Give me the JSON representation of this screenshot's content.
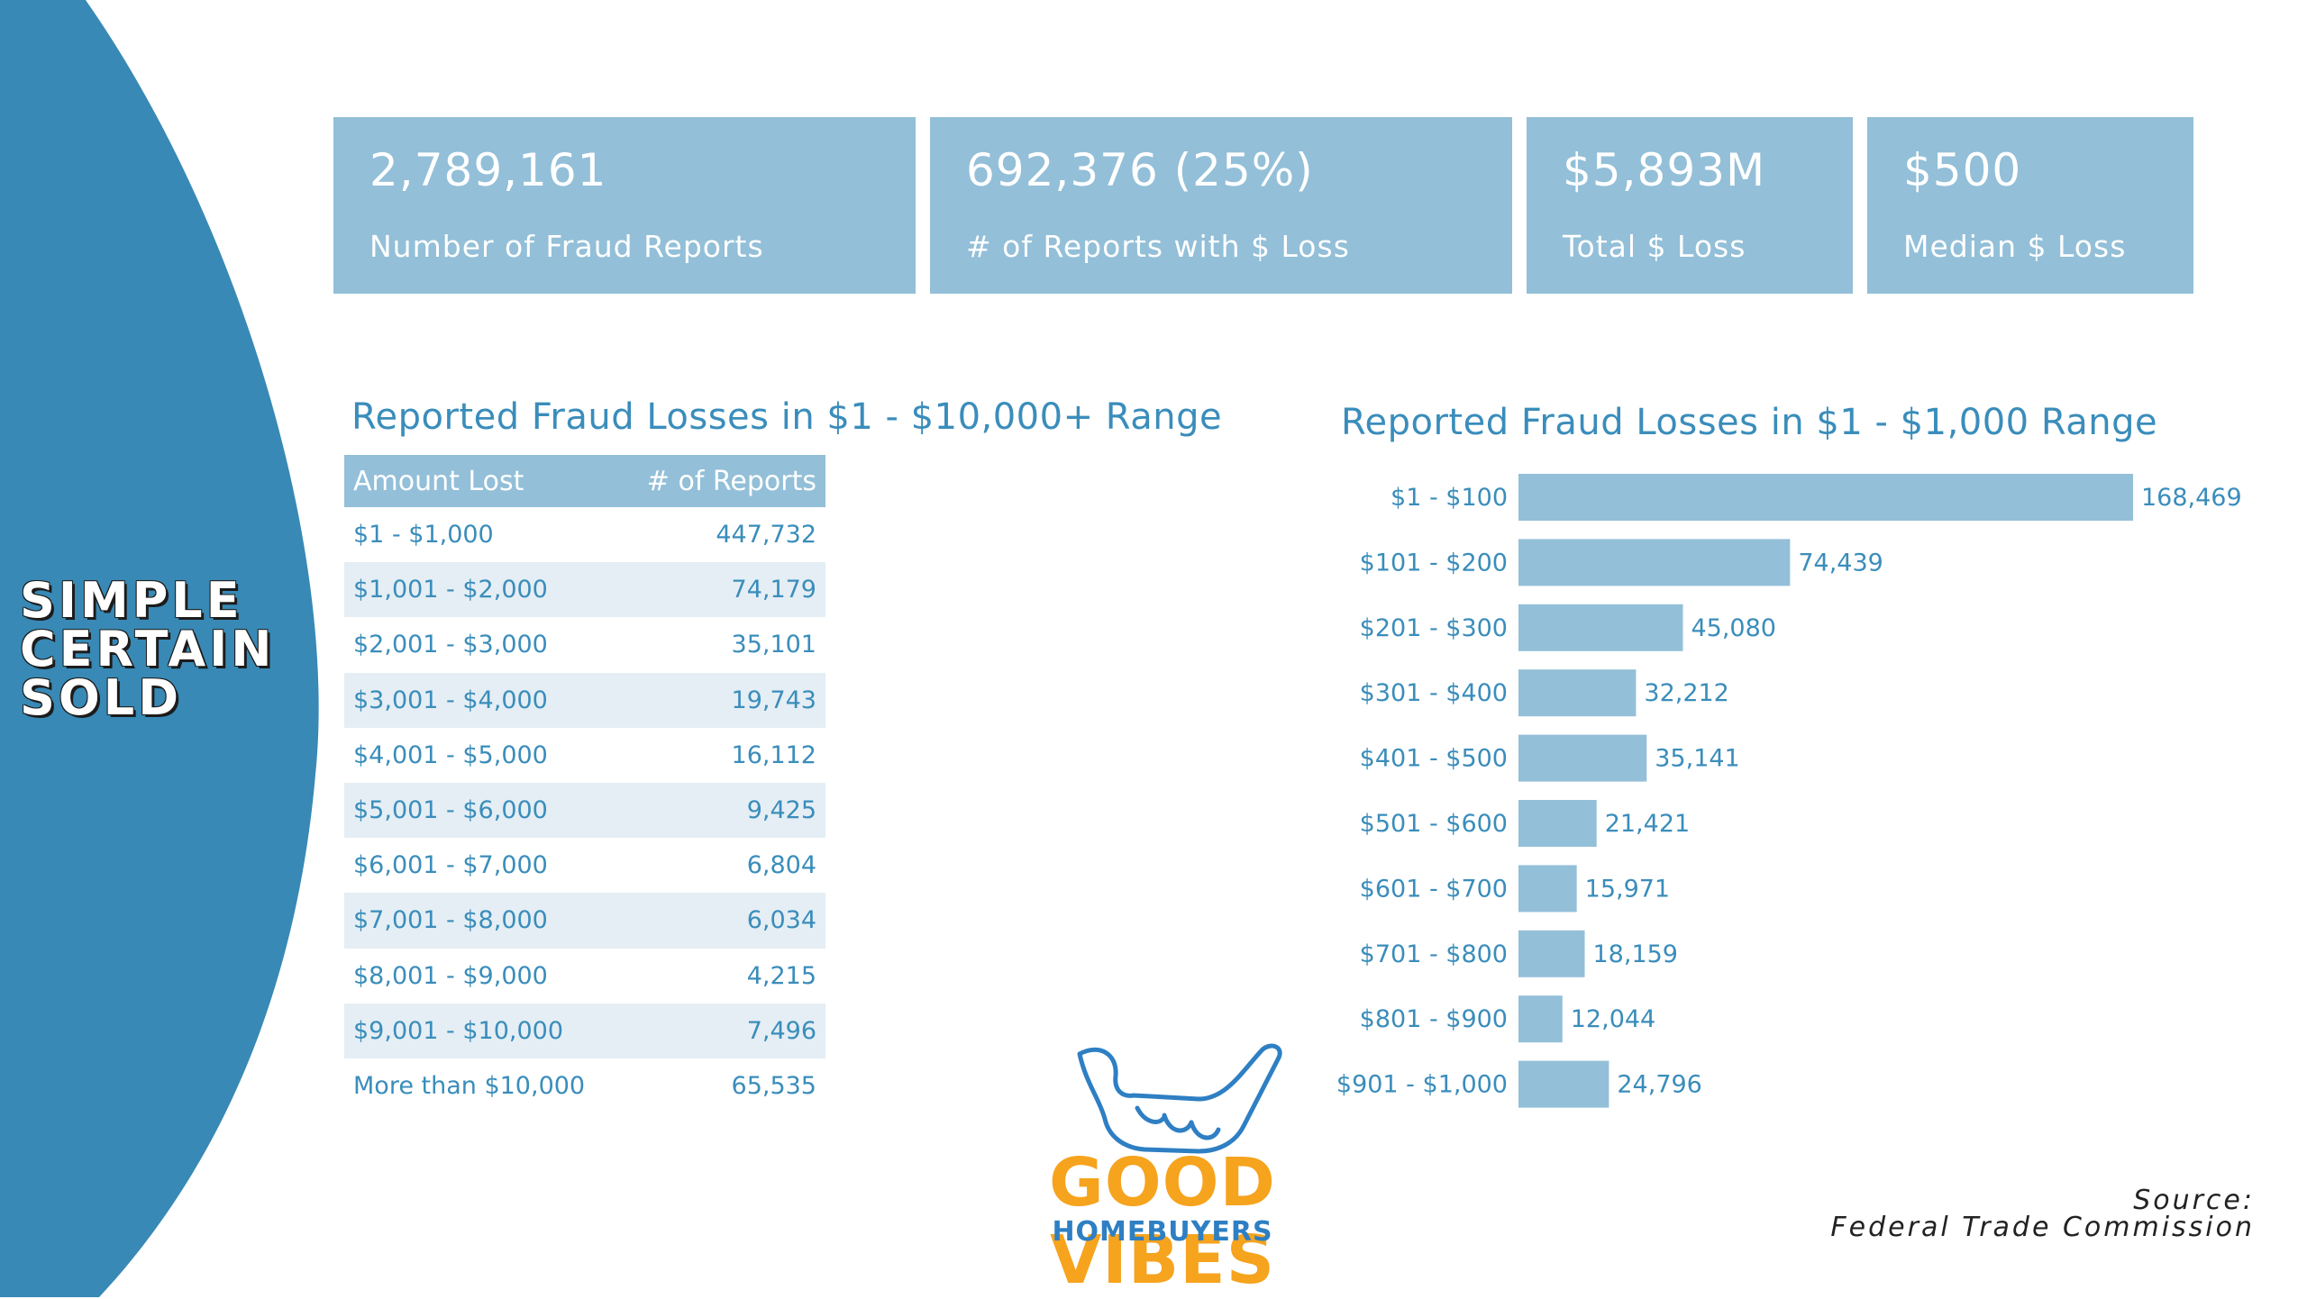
{
  "brand": {
    "tagline": [
      "SIMPLE",
      "CERTAIN",
      "SOLD"
    ],
    "logo_name": "GOOD VIBES",
    "logo_sub": "HOMEBUYERS"
  },
  "kpis": [
    {
      "value": "2,789,161",
      "label": "Number of Fraud Reports"
    },
    {
      "value": "692,376 (25%)",
      "label": "# of Reports with $ Loss"
    },
    {
      "value": "$5,893M",
      "label": "Total $ Loss"
    },
    {
      "value": "$500",
      "label": "Median $ Loss"
    }
  ],
  "colors": {
    "accent": "#93bfd8",
    "text_blue": "#3a8dbb",
    "arc": "#3889b5",
    "row_alt": "#e4eef4",
    "logo_orange": "#f6a31d",
    "logo_blue": "#2e7fc3"
  },
  "source": {
    "line1": "Source:",
    "line2": "Federal Trade Commission"
  },
  "chart_data": [
    {
      "type": "table",
      "title": "Reported Fraud Losses in $1 - $10,000+ Range",
      "columns": [
        "Amount Lost",
        "# of Reports"
      ],
      "rows": [
        [
          "$1 - $1,000",
          "447,732"
        ],
        [
          "$1,001 - $2,000",
          "74,179"
        ],
        [
          "$2,001 - $3,000",
          "35,101"
        ],
        [
          "$3,001 - $4,000",
          "19,743"
        ],
        [
          "$4,001 - $5,000",
          "16,112"
        ],
        [
          "$5,001 - $6,000",
          "9,425"
        ],
        [
          "$6,001 - $7,000",
          "6,804"
        ],
        [
          "$7,001 - $8,000",
          "6,034"
        ],
        [
          "$8,001 - $9,000",
          "4,215"
        ],
        [
          "$9,001 - $10,000",
          "7,496"
        ],
        [
          "More than $10,000",
          "65,535"
        ]
      ]
    },
    {
      "type": "bar",
      "orientation": "horizontal",
      "title": "Reported Fraud Losses in $1 - $1,000 Range",
      "categories": [
        "$1 - $100",
        "$101 - $200",
        "$201 - $300",
        "$301 - $400",
        "$401 - $500",
        "$501 - $600",
        "$601 - $700",
        "$701 - $800",
        "$801 - $900",
        "$901 - $1,000"
      ],
      "values": [
        168469,
        74439,
        45080,
        32212,
        35141,
        21421,
        15971,
        18159,
        12044,
        24796
      ],
      "value_labels": [
        "168,469",
        "74,439",
        "45,080",
        "32,212",
        "35,141",
        "21,421",
        "15,971",
        "18,159",
        "12,044",
        "24,796"
      ],
      "xlim": [
        0,
        168469
      ],
      "grid": false,
      "color": "#93bfd8"
    }
  ]
}
